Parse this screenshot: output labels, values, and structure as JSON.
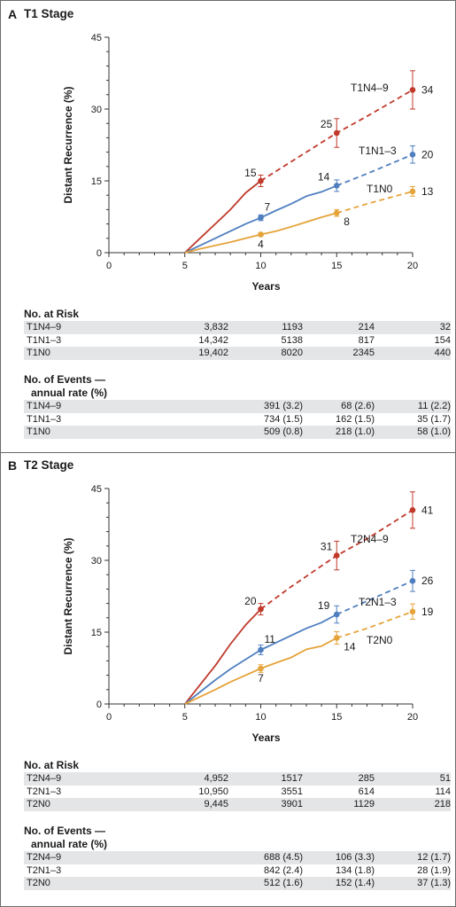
{
  "panels": [
    {
      "letter": "A",
      "title": "T1 Stage",
      "chart_data": {
        "type": "line",
        "xlabel": "Years",
        "ylabel": "Distant Recurrence (%)",
        "xlim": [
          0,
          20
        ],
        "ylim": [
          0,
          45
        ],
        "x_ticks": [
          "0",
          "5",
          "10",
          "15",
          "20"
        ],
        "y_ticks": [
          "0",
          "15",
          "30",
          "45"
        ],
        "series": [
          {
            "name": "T1N4–9",
            "color": "#c0392b",
            "solid": [
              [
                5,
                0
              ],
              [
                6,
                3
              ],
              [
                7,
                6
              ],
              [
                8,
                9
              ],
              [
                9,
                12.5
              ],
              [
                10,
                15
              ]
            ],
            "dashed": [
              [
                10,
                15
              ],
              [
                12,
                19
              ],
              [
                14,
                23
              ],
              [
                15,
                25
              ],
              [
                17,
                28.5
              ],
              [
                20,
                34
              ]
            ],
            "markers": [
              {
                "x": 10,
                "y": 15,
                "err": 1.2
              },
              {
                "x": 15,
                "y": 25,
                "err": 3
              },
              {
                "x": 20,
                "y": 34,
                "err": 4
              }
            ],
            "labels": [
              {
                "x": 10,
                "y": 15,
                "text": "15"
              },
              {
                "x": 15,
                "y": 25,
                "text": "25"
              },
              {
                "x": 20,
                "y": 34,
                "text": "34"
              }
            ]
          },
          {
            "name": "T1N1–3",
            "color": "#4f7fbf",
            "solid": [
              [
                5,
                0
              ],
              [
                6,
                1.5
              ],
              [
                7,
                3
              ],
              [
                8,
                4.5
              ],
              [
                9,
                6
              ],
              [
                10,
                7.3
              ],
              [
                11,
                8.8
              ],
              [
                12,
                10.2
              ],
              [
                13,
                11.8
              ],
              [
                14,
                12.7
              ],
              [
                15,
                14
              ]
            ],
            "dashed": [
              [
                15,
                14
              ],
              [
                17,
                16.5
              ],
              [
                20,
                20.5
              ]
            ],
            "markers": [
              {
                "x": 10,
                "y": 7.3,
                "err": 0.6
              },
              {
                "x": 15,
                "y": 14,
                "err": 1.2
              },
              {
                "x": 20,
                "y": 20.5,
                "err": 1.8
              }
            ],
            "labels": [
              {
                "x": 10,
                "y": 7.3,
                "text": "7"
              },
              {
                "x": 15,
                "y": 14,
                "text": "14"
              },
              {
                "x": 20,
                "y": 20.5,
                "text": "20"
              }
            ]
          },
          {
            "name": "T1N0",
            "color": "#e5a33a",
            "solid": [
              [
                5,
                0
              ],
              [
                6,
                0.8
              ],
              [
                7,
                1.5
              ],
              [
                8,
                2.2
              ],
              [
                9,
                3
              ],
              [
                10,
                3.8
              ],
              [
                11,
                4.5
              ],
              [
                12,
                5.4
              ],
              [
                13,
                6.4
              ],
              [
                14,
                7.4
              ],
              [
                15,
                8.3
              ]
            ],
            "dashed": [
              [
                15,
                8.3
              ],
              [
                17,
                10.2
              ],
              [
                20,
                12.8
              ]
            ],
            "markers": [
              {
                "x": 10,
                "y": 3.8,
                "err": 0.3
              },
              {
                "x": 15,
                "y": 8.3,
                "err": 0.7
              },
              {
                "x": 20,
                "y": 12.8,
                "err": 1.0
              }
            ],
            "labels": [
              {
                "x": 10,
                "y": 3.8,
                "text": "4"
              },
              {
                "x": 15,
                "y": 8.3,
                "text": "8"
              },
              {
                "x": 20,
                "y": 12.8,
                "text": "13"
              }
            ]
          }
        ]
      },
      "at_risk": {
        "heading": "No. at Risk",
        "rows": [
          {
            "label": "T1N4–9",
            "values": [
              "3,832",
              "1193",
              "214",
              "32"
            ]
          },
          {
            "label": "T1N1–3",
            "values": [
              "14,342",
              "5138",
              "817",
              "154"
            ]
          },
          {
            "label": "T1N0",
            "values": [
              "19,402",
              "8020",
              "2345",
              "440"
            ]
          }
        ]
      },
      "events": {
        "heading_line1": "No. of Events —",
        "heading_line2": "annual rate (%)",
        "rows": [
          {
            "label": "T1N4–9",
            "values": [
              "",
              "391 (3.2)",
              "68 (2.6)",
              "11 (2.2)"
            ]
          },
          {
            "label": "T1N1–3",
            "values": [
              "",
              "734 (1.5)",
              "162 (1.5)",
              "35 (1.7)"
            ]
          },
          {
            "label": "T1N0",
            "values": [
              "",
              "509 (0.8)",
              "218 (1.0)",
              "58 (1.0)"
            ]
          }
        ]
      }
    },
    {
      "letter": "B",
      "title": "T2 Stage",
      "chart_data": {
        "type": "line",
        "xlabel": "Years",
        "ylabel": "Distant Recurrence (%)",
        "xlim": [
          0,
          20
        ],
        "ylim": [
          0,
          45
        ],
        "x_ticks": [
          "0",
          "5",
          "10",
          "15",
          "20"
        ],
        "y_ticks": [
          "0",
          "15",
          "30",
          "45"
        ],
        "series": [
          {
            "name": "T2N4–9",
            "color": "#c0392b",
            "solid": [
              [
                5,
                0
              ],
              [
                6,
                4
              ],
              [
                7,
                8
              ],
              [
                8,
                12.5
              ],
              [
                9,
                16.5
              ],
              [
                10,
                19.8
              ]
            ],
            "dashed": [
              [
                10,
                19.8
              ],
              [
                12,
                24.5
              ],
              [
                15,
                31
              ],
              [
                17,
                34.5
              ],
              [
                20,
                40.5
              ]
            ],
            "markers": [
              {
                "x": 10,
                "y": 19.8,
                "err": 1.2
              },
              {
                "x": 15,
                "y": 31,
                "err": 3
              },
              {
                "x": 20,
                "y": 40.5,
                "err": 3.8
              }
            ],
            "labels": [
              {
                "x": 10,
                "y": 19.8,
                "text": "20"
              },
              {
                "x": 15,
                "y": 31,
                "text": "31"
              },
              {
                "x": 20,
                "y": 40.5,
                "text": "41"
              }
            ]
          },
          {
            "name": "T2N1–3",
            "color": "#4f7fbf",
            "solid": [
              [
                5,
                0
              ],
              [
                6,
                2.5
              ],
              [
                7,
                5
              ],
              [
                8,
                7.3
              ],
              [
                9,
                9.3
              ],
              [
                10,
                11.3
              ],
              [
                11,
                12.8
              ],
              [
                12,
                14.3
              ],
              [
                13,
                15.8
              ],
              [
                14,
                17
              ],
              [
                15,
                18.7
              ]
            ],
            "dashed": [
              [
                15,
                18.7
              ],
              [
                17,
                21.5
              ],
              [
                20,
                25.7
              ]
            ],
            "markers": [
              {
                "x": 10,
                "y": 11.3,
                "err": 1.0
              },
              {
                "x": 15,
                "y": 18.7,
                "err": 1.8
              },
              {
                "x": 20,
                "y": 25.7,
                "err": 2.2
              }
            ],
            "labels": [
              {
                "x": 10,
                "y": 11.3,
                "text": "11"
              },
              {
                "x": 15,
                "y": 18.7,
                "text": "19"
              },
              {
                "x": 20,
                "y": 25.7,
                "text": "26"
              }
            ]
          },
          {
            "name": "T2N0",
            "color": "#e5a33a",
            "solid": [
              [
                5,
                0
              ],
              [
                6,
                1.5
              ],
              [
                7,
                3
              ],
              [
                8,
                4.6
              ],
              [
                9,
                6
              ],
              [
                10,
                7.4
              ],
              [
                11,
                8.6
              ],
              [
                12,
                9.7
              ],
              [
                13,
                11.4
              ],
              [
                14,
                12.1
              ],
              [
                15,
                13.8
              ]
            ],
            "dashed": [
              [
                15,
                13.8
              ],
              [
                17,
                15.8
              ],
              [
                20,
                19.3
              ]
            ],
            "markers": [
              {
                "x": 10,
                "y": 7.4,
                "err": 0.8
              },
              {
                "x": 15,
                "y": 13.8,
                "err": 1.3
              },
              {
                "x": 20,
                "y": 19.3,
                "err": 1.6
              }
            ],
            "labels": [
              {
                "x": 10,
                "y": 7.4,
                "text": "7"
              },
              {
                "x": 15,
                "y": 13.8,
                "text": "14"
              },
              {
                "x": 20,
                "y": 19.3,
                "text": "19"
              }
            ]
          }
        ]
      },
      "at_risk": {
        "heading": "No. at Risk",
        "rows": [
          {
            "label": "T2N4–9",
            "values": [
              "4,952",
              "1517",
              "285",
              "51"
            ]
          },
          {
            "label": "T2N1–3",
            "values": [
              "10,950",
              "3551",
              "614",
              "114"
            ]
          },
          {
            "label": "T2N0",
            "values": [
              "9,445",
              "3901",
              "1129",
              "218"
            ]
          }
        ]
      },
      "events": {
        "heading_line1": "No. of Events —",
        "heading_line2": "annual rate (%)",
        "rows": [
          {
            "label": "T2N4–9",
            "values": [
              "",
              "688 (4.5)",
              "106 (3.3)",
              "12 (1.7)"
            ]
          },
          {
            "label": "T2N1–3",
            "values": [
              "",
              "842 (2.4)",
              "134 (1.8)",
              "28 (1.9)"
            ]
          },
          {
            "label": "T2N0",
            "values": [
              "",
              "512 (1.6)",
              "152 (1.4)",
              "37 (1.3)"
            ]
          }
        ]
      }
    }
  ]
}
